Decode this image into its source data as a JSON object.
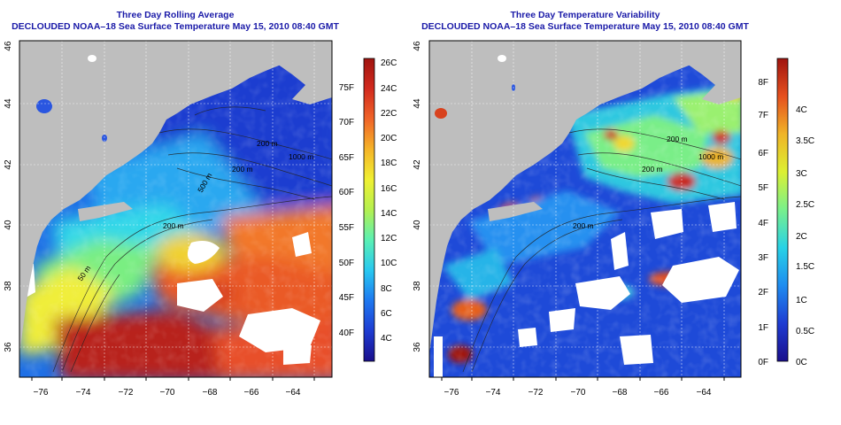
{
  "panels": [
    {
      "title": "Three Day Rolling Average",
      "subtitle": "DECLOUDED NOAA–18 Sea Surface Temperature May 15, 2010 08:40 GMT",
      "x_ticks": [
        "−76",
        "−74",
        "−72",
        "−70",
        "−68",
        "−66",
        "−64"
      ],
      "y_ticks": [
        "36",
        "38",
        "40",
        "42",
        "44",
        "46"
      ],
      "colorbar_f": [
        "40F",
        "45F",
        "50F",
        "55F",
        "60F",
        "65F",
        "70F",
        "75F"
      ],
      "colorbar_c": [
        "4C",
        "6C",
        "8C",
        "10C",
        "12C",
        "14C",
        "16C",
        "18C",
        "20C",
        "22C",
        "24C",
        "26C"
      ],
      "contour_labels": [
        "200 m",
        "1000 m",
        "200 m",
        "500 m",
        "200 m",
        "50 m"
      ]
    },
    {
      "title": "Three Day Temperature Variability",
      "subtitle": "DECLOUDED NOAA–18 Sea Surface Temperature May 15, 2010 08:40 GMT",
      "x_ticks": [
        "−76",
        "−74",
        "−72",
        "−70",
        "−68",
        "−66",
        "−64"
      ],
      "y_ticks": [
        "36",
        "38",
        "40",
        "42",
        "44",
        "46"
      ],
      "colorbar_f": [
        "0F",
        "1F",
        "2F",
        "3F",
        "4F",
        "5F",
        "6F",
        "7F",
        "8F"
      ],
      "colorbar_c": [
        "0C",
        "0.5C",
        "1C",
        "1.5C",
        "2C",
        "2.5C",
        "3C",
        "3.5C",
        "4C"
      ],
      "contour_labels": [
        "200 m",
        "1000 m",
        "200 m",
        "200 m"
      ]
    }
  ],
  "colors": {
    "land": "#bebebe",
    "title": "#1a1aa8",
    "sst_scale": [
      "#1a0f8c",
      "#1e3cd2",
      "#1e78f0",
      "#28c8f0",
      "#5af0b4",
      "#b4f050",
      "#f0f032",
      "#f5b428",
      "#f06428",
      "#d22a1e",
      "#a0140f"
    ],
    "var_scale": [
      "#1a0f8c",
      "#1e3cd2",
      "#1e8cf0",
      "#28d2e6",
      "#78f08c",
      "#dcf032",
      "#f0b428",
      "#e6501e",
      "#a0140f"
    ]
  }
}
